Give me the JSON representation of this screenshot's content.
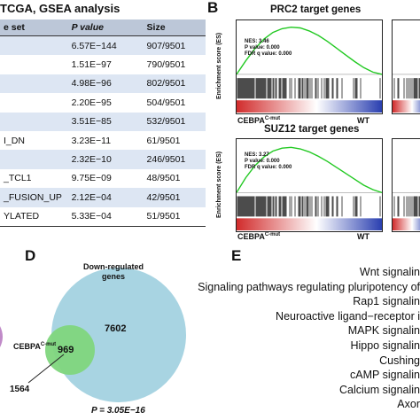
{
  "panelA": {
    "title": "TCGA, GSEA analysis",
    "headers": [
      "e set",
      "P value",
      "Size"
    ],
    "rows": [
      {
        "name": "",
        "p": "6.57E−144",
        "size": "907/9501"
      },
      {
        "name": "",
        "p": "1.51E−97",
        "size": "790/9501"
      },
      {
        "name": "",
        "p": "4.98E−96",
        "size": "802/9501"
      },
      {
        "name": "",
        "p": "2.20E−95",
        "size": "504/9501"
      },
      {
        "name": "",
        "p": "3.51E−85",
        "size": "532/9501"
      },
      {
        "name": "I_DN",
        "p": "3.23E−11",
        "size": "61/9501"
      },
      {
        "name": "",
        "p": "2.32E−10",
        "size": "246/9501"
      },
      {
        "name": "_TCL1",
        "p": "9.75E−09",
        "size": "48/9501"
      },
      {
        "name": "_FUSION_UP",
        "p": "2.12E−04",
        "size": "42/9501"
      },
      {
        "name": "YLATED",
        "p": "5.33E−04",
        "size": "51/9501"
      }
    ]
  },
  "panelB": {
    "label": "B",
    "ylabel": "Enrichment score (ES)",
    "plots": [
      {
        "title": "PRC2 target genes",
        "nes": "NES: 3.46",
        "pval": "P value: 0.000",
        "fdr": "FDR q value: 0.000",
        "es_curve": [
          0,
          0.18,
          0.34,
          0.47,
          0.56,
          0.61,
          0.63,
          0.62,
          0.58,
          0.52,
          0.44,
          0.35,
          0.26,
          0.17,
          0.09,
          0.03,
          0
        ]
      },
      {
        "title": "SUZ12 target genes",
        "nes": "NES: 3.27",
        "pval": "P value: 0.000",
        "fdr": "FDR q value: 0.000",
        "es_curve": [
          0,
          0.2,
          0.36,
          0.48,
          0.56,
          0.6,
          0.61,
          0.59,
          0.55,
          0.49,
          0.42,
          0.34,
          0.26,
          0.18,
          0.1,
          0.04,
          0
        ]
      }
    ],
    "left_group": "CEBPA",
    "left_group_sup": "C-mut",
    "right_group": "WT"
  },
  "panelD": {
    "label": "D",
    "big_label": "Down-regulated\ngenes",
    "big_count": "7602",
    "overlap_count": "969",
    "small_label": "CEBPA",
    "small_label_sup": "C-mut",
    "small_count": "1564",
    "pvalue": "P = 3.05E−16",
    "colors": {
      "big": "#a8d4e2",
      "small": "#7fd67d"
    }
  },
  "panelE": {
    "label": "E",
    "pathways": [
      "Wnt signalin",
      "Signaling pathways regulating pluripotency of",
      "Rap1 signalin",
      "Neuroactive ligand−receptor i",
      "MAPK signalin",
      "Hippo signalin",
      "Cushing",
      "cAMP signalin",
      "Calcium signalin",
      "Axor"
    ]
  }
}
